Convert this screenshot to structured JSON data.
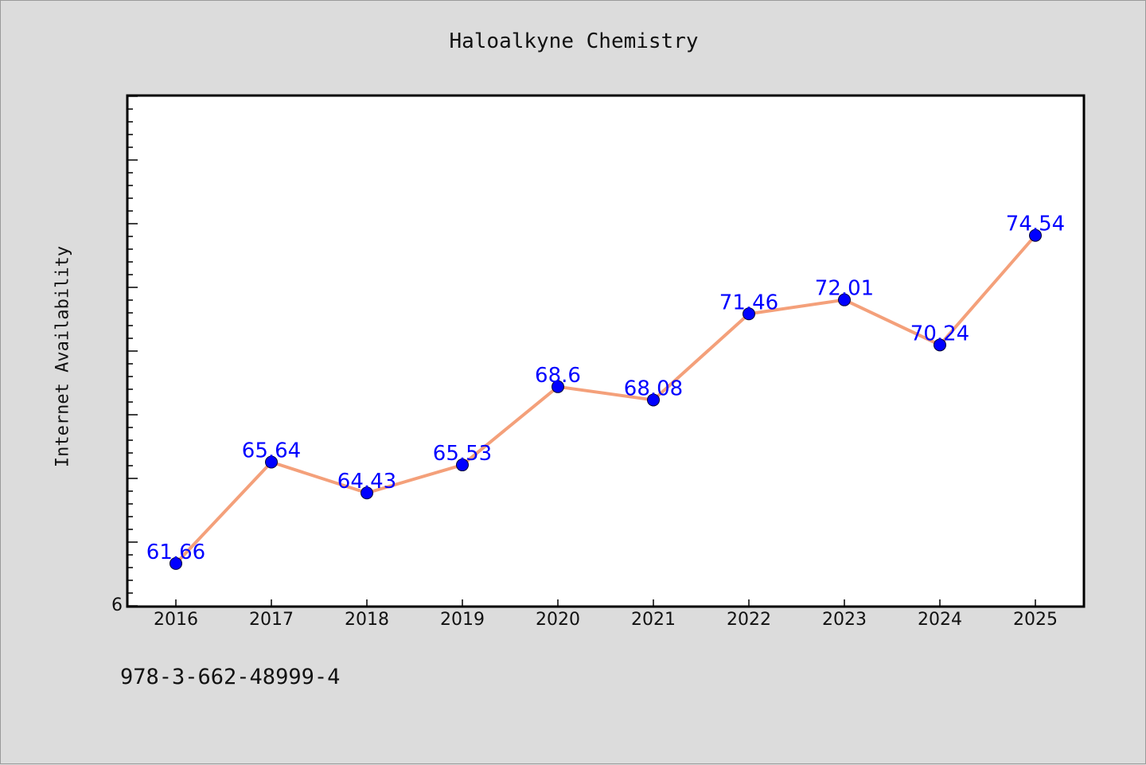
{
  "footer": {
    "code": "978-3-662-48999-4"
  },
  "chart_data": {
    "type": "line",
    "title": "Haloalkyne Chemistry",
    "xlabel": "",
    "ylabel": "Internet Availability",
    "categories": [
      "2016",
      "2017",
      "2018",
      "2019",
      "2020",
      "2021",
      "2022",
      "2023",
      "2024",
      "2025"
    ],
    "series": [
      {
        "values": [
          61.66,
          65.64,
          64.43,
          65.53,
          68.6,
          68.08,
          71.46,
          72.01,
          70.24,
          74.54
        ],
        "data_labels": [
          "61.66",
          "65.64",
          "64.43",
          "65.53",
          "68.6",
          "68.08",
          "71.46",
          "72.01",
          "70.24",
          "74.54"
        ]
      }
    ],
    "ylim": [
      60,
      80
    ],
    "y_tick_labels": [
      "6"
    ],
    "grid": false,
    "legend": "none",
    "colors": {
      "line": "#f4a07a",
      "marker": "#0000ff",
      "label": "#0000ff",
      "plot_background": "#ffffff",
      "figure_background": "#dcdcdc"
    }
  }
}
